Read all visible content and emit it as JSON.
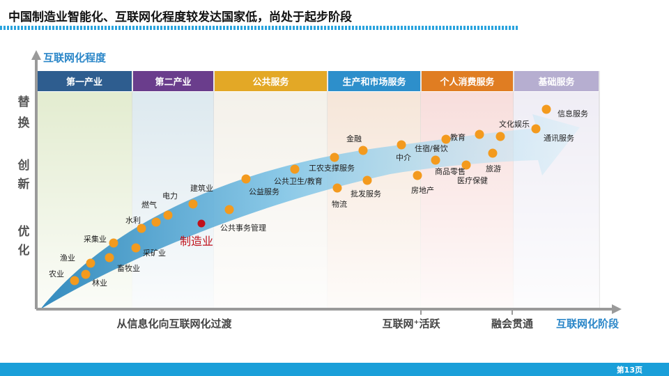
{
  "slide": {
    "title": "中国制造业智能化、互联网化程度较发达国家低，尚处于起步阶段",
    "page_number": "第13页"
  },
  "axes": {
    "y_title": "互联网化程度",
    "y_levels": [
      "替换",
      "创新",
      "优化"
    ],
    "x_stages": [
      "从信息化向互联网化过渡",
      "互联网⁺活跃",
      "融会贯通"
    ],
    "x_title": "互联网化阶段"
  },
  "sectors": [
    {
      "label": "第一产业",
      "color": "#2e5d8f",
      "band": "#e3ecd0"
    },
    {
      "label": "第二产业",
      "color": "#6a3d8c",
      "band": "#dde9ef"
    },
    {
      "label": "公共服务",
      "color": "#e3a826",
      "band": "#f4f1ea"
    },
    {
      "label": "生产和市场服务",
      "color": "#2d8fcb",
      "band": "#f6e6d9"
    },
    {
      "label": "个人消费服务",
      "color": "#e07d22",
      "band": "#f8dedc"
    },
    {
      "label": "基础服务",
      "color": "#b6aed0",
      "band": "#efedf5"
    }
  ],
  "industries": [
    {
      "label": "农业"
    },
    {
      "label": "林业"
    },
    {
      "label": "渔业"
    },
    {
      "label": "畜牧业"
    },
    {
      "label": "采集业"
    },
    {
      "label": "采矿业"
    },
    {
      "label": "水利"
    },
    {
      "label": "燃气"
    },
    {
      "label": "电力"
    },
    {
      "label": "建筑业"
    },
    {
      "label": "制造业",
      "highlight": true
    },
    {
      "label": "公共事务管理"
    },
    {
      "label": "公益服务"
    },
    {
      "label": "公共卫生/教育"
    },
    {
      "label": "工农支撑服务"
    },
    {
      "label": "物流"
    },
    {
      "label": "金融"
    },
    {
      "label": "批发服务"
    },
    {
      "label": "中介"
    },
    {
      "label": "房地产"
    },
    {
      "label": "住宿/餐饮"
    },
    {
      "label": "教育"
    },
    {
      "label": "商品零售"
    },
    {
      "label": "医疗保健"
    },
    {
      "label": "文化娱乐"
    },
    {
      "label": "旅游"
    },
    {
      "label": "信息服务"
    },
    {
      "label": "通讯服务"
    }
  ],
  "colors": {
    "dot": "#f39a1e",
    "highlight_dot": "#c0111b",
    "highlight_text": "#c0111b",
    "axis_title": "#2a86c8",
    "footer": "#1a9fd9",
    "axis_line": "#9a9a9a"
  }
}
